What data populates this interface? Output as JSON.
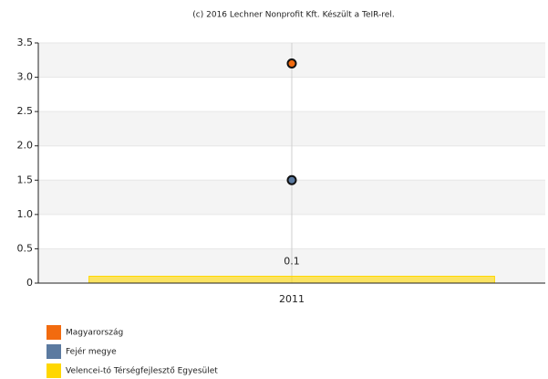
{
  "chart_data": {
    "type": "bar",
    "title": "(c) 2016 Lechner Nonprofit Kft. Készült a TeIR-rel.",
    "categories": [
      "2011"
    ],
    "series": [
      {
        "name": "Magyarország",
        "color": "#f26b0f",
        "type": "scatter",
        "values": [
          3.2
        ]
      },
      {
        "name": "Fejér megye",
        "color": "#5b7aa0",
        "type": "scatter",
        "values": [
          1.5
        ]
      },
      {
        "name": "Velencei-tó Térségfejlesztő Egyesület",
        "color": "#ffd700",
        "type": "bar",
        "values": [
          0.1
        ]
      }
    ],
    "ylim": [
      0,
      3.5
    ],
    "yticks": [
      0,
      0.5,
      {
        "value": 1,
        "label": "1.0"
      },
      1.5,
      {
        "value": 2,
        "label": "2.0"
      },
      2.5,
      {
        "value": 3,
        "label": "3.0"
      },
      3.5
    ],
    "grid": true
  }
}
